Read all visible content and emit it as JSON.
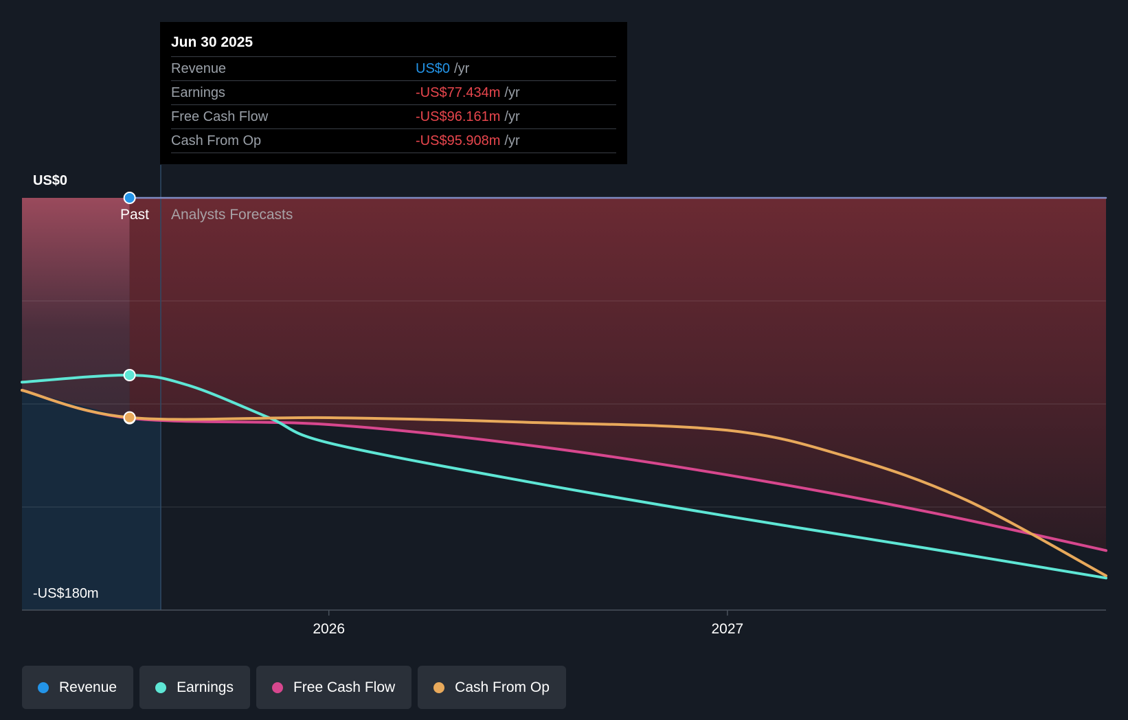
{
  "tooltip": {
    "date": "Jun 30 2025",
    "rows": [
      {
        "label": "Revenue",
        "value": "US$0",
        "unit": "/yr",
        "color": "#2394e8"
      },
      {
        "label": "Earnings",
        "value": "-US$77.434m",
        "unit": "/yr",
        "color": "#e8464d"
      },
      {
        "label": "Free Cash Flow",
        "value": "-US$96.161m",
        "unit": "/yr",
        "color": "#e8464d"
      },
      {
        "label": "Cash From Op",
        "value": "-US$95.908m",
        "unit": "/yr",
        "color": "#e8464d"
      }
    ]
  },
  "labels": {
    "y_top": "US$0",
    "y_bottom": "-US$180m",
    "past": "Past",
    "forecast": "Analysts Forecasts"
  },
  "legend": [
    {
      "label": "Revenue",
      "color": "#2394e8"
    },
    {
      "label": "Earnings",
      "color": "#5ee6d5"
    },
    {
      "label": "Free Cash Flow",
      "color": "#d7478e"
    },
    {
      "label": "Cash From Op",
      "color": "#e8a95b"
    }
  ],
  "chart_data": {
    "type": "line",
    "ylim": [
      -180,
      0
    ],
    "y_unit": "US$m",
    "xlim": [
      2025.23,
      2027.95
    ],
    "x_ticks": [
      {
        "value": 2026,
        "label": "2026"
      },
      {
        "value": 2027,
        "label": "2027"
      }
    ],
    "past_end": 2025.5,
    "series": [
      {
        "name": "Revenue",
        "color": "#2394e8",
        "points": [
          [
            2025.5,
            0
          ],
          [
            2027.95,
            0
          ]
        ]
      },
      {
        "name": "Earnings",
        "color": "#5ee6d5",
        "points": [
          [
            2025.23,
            -80.5
          ],
          [
            2025.5,
            -77.4
          ],
          [
            2025.65,
            -82
          ],
          [
            2025.85,
            -96
          ],
          [
            2026.0,
            -107
          ],
          [
            2026.5,
            -124
          ],
          [
            2027.0,
            -139
          ],
          [
            2027.5,
            -153
          ],
          [
            2027.95,
            -166
          ]
        ]
      },
      {
        "name": "Free Cash Flow",
        "color": "#d7478e",
        "points": [
          [
            2025.23,
            -84
          ],
          [
            2025.5,
            -96.2
          ],
          [
            2026.0,
            -99
          ],
          [
            2026.5,
            -108
          ],
          [
            2027.0,
            -121
          ],
          [
            2027.5,
            -137
          ],
          [
            2027.95,
            -154
          ]
        ]
      },
      {
        "name": "Cash From Op",
        "color": "#e8a95b",
        "points": [
          [
            2025.23,
            -84
          ],
          [
            2025.5,
            -95.9
          ],
          [
            2026.0,
            -96
          ],
          [
            2026.5,
            -98
          ],
          [
            2027.0,
            -101.5
          ],
          [
            2027.3,
            -113
          ],
          [
            2027.6,
            -132
          ],
          [
            2027.95,
            -165
          ]
        ]
      }
    ]
  }
}
